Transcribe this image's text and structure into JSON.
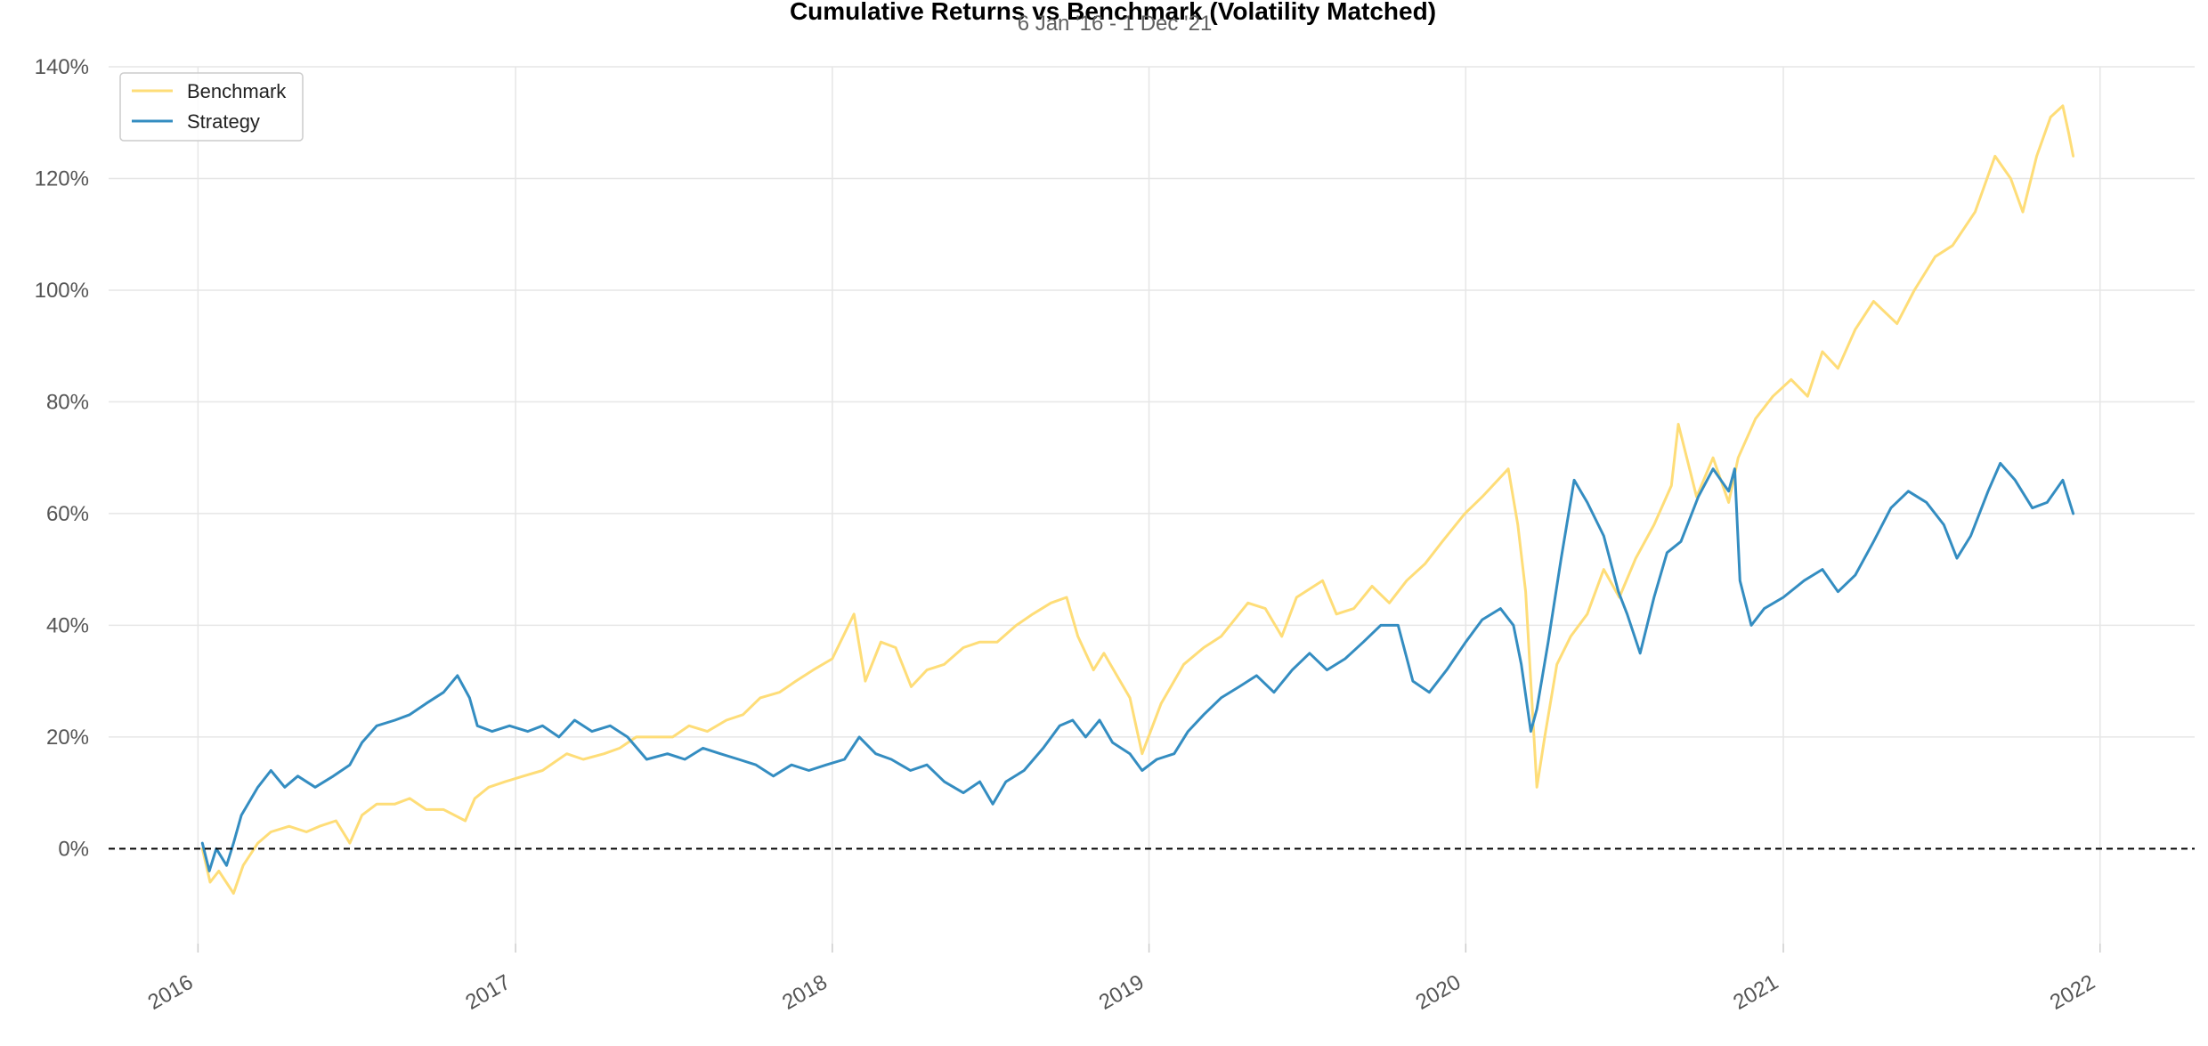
{
  "chart_data": {
    "type": "line",
    "title": "Cumulative Returns vs Benchmark (Volatility Matched)",
    "subtitle": "6 Jan '16 -  1 Dec '21",
    "xlabel": "",
    "ylabel": "",
    "xlim": [
      "2015-09-20",
      "2022-04-20"
    ],
    "ylim": [
      -17,
      140
    ],
    "yticks": [
      0,
      20,
      40,
      60,
      80,
      100,
      120,
      140
    ],
    "ytick_labels": [
      "0%",
      "20%",
      "40%",
      "60%",
      "80%",
      "100%",
      "120%",
      "140%"
    ],
    "xticks": [
      "2016-01-01",
      "2017-01-01",
      "2018-01-01",
      "2019-01-01",
      "2020-01-01",
      "2021-01-01",
      "2022-01-01"
    ],
    "xtick_labels": [
      "2016",
      "2017",
      "2018",
      "2019",
      "2020",
      "2021",
      "2022"
    ],
    "grid": true,
    "legend_position": "top-left",
    "zero_line": true,
    "series": [
      {
        "name": "Benchmark",
        "color": "#fedd78",
        "points": [
          [
            "2016-01-06",
            0
          ],
          [
            "2016-01-15",
            -6
          ],
          [
            "2016-01-25",
            -4
          ],
          [
            "2016-02-11",
            -8
          ],
          [
            "2016-02-22",
            -3
          ],
          [
            "2016-03-10",
            1
          ],
          [
            "2016-03-25",
            3
          ],
          [
            "2016-04-15",
            4
          ],
          [
            "2016-05-05",
            3
          ],
          [
            "2016-05-20",
            4
          ],
          [
            "2016-06-08",
            5
          ],
          [
            "2016-06-24",
            1
          ],
          [
            "2016-07-08",
            6
          ],
          [
            "2016-07-25",
            8
          ],
          [
            "2016-08-15",
            8
          ],
          [
            "2016-09-01",
            9
          ],
          [
            "2016-09-20",
            7
          ],
          [
            "2016-10-10",
            7
          ],
          [
            "2016-11-04",
            5
          ],
          [
            "2016-11-15",
            9
          ],
          [
            "2016-12-01",
            11
          ],
          [
            "2016-12-20",
            12
          ],
          [
            "2017-01-10",
            13
          ],
          [
            "2017-02-01",
            14
          ],
          [
            "2017-03-01",
            17
          ],
          [
            "2017-03-20",
            16
          ],
          [
            "2017-04-13",
            17
          ],
          [
            "2017-05-01",
            18
          ],
          [
            "2017-05-20",
            20
          ],
          [
            "2017-06-10",
            20
          ],
          [
            "2017-07-01",
            20
          ],
          [
            "2017-07-20",
            22
          ],
          [
            "2017-08-10",
            21
          ],
          [
            "2017-09-01",
            23
          ],
          [
            "2017-09-20",
            24
          ],
          [
            "2017-10-10",
            27
          ],
          [
            "2017-11-01",
            28
          ],
          [
            "2017-11-20",
            30
          ],
          [
            "2017-12-10",
            32
          ],
          [
            "2018-01-01",
            34
          ],
          [
            "2018-01-26",
            42
          ],
          [
            "2018-02-08",
            30
          ],
          [
            "2018-02-26",
            37
          ],
          [
            "2018-03-15",
            36
          ],
          [
            "2018-04-02",
            29
          ],
          [
            "2018-04-20",
            32
          ],
          [
            "2018-05-10",
            33
          ],
          [
            "2018-06-01",
            36
          ],
          [
            "2018-06-20",
            37
          ],
          [
            "2018-07-10",
            37
          ],
          [
            "2018-08-01",
            40
          ],
          [
            "2018-08-20",
            42
          ],
          [
            "2018-09-10",
            44
          ],
          [
            "2018-09-28",
            45
          ],
          [
            "2018-10-11",
            38
          ],
          [
            "2018-10-29",
            32
          ],
          [
            "2018-11-10",
            35
          ],
          [
            "2018-11-25",
            31
          ],
          [
            "2018-12-10",
            27
          ],
          [
            "2018-12-24",
            17
          ],
          [
            "2019-01-15",
            26
          ],
          [
            "2019-02-10",
            33
          ],
          [
            "2019-03-05",
            36
          ],
          [
            "2019-03-25",
            38
          ],
          [
            "2019-04-25",
            44
          ],
          [
            "2019-05-15",
            43
          ],
          [
            "2019-06-03",
            38
          ],
          [
            "2019-06-20",
            45
          ],
          [
            "2019-07-20",
            48
          ],
          [
            "2019-08-05",
            42
          ],
          [
            "2019-08-25",
            43
          ],
          [
            "2019-09-15",
            47
          ],
          [
            "2019-10-05",
            44
          ],
          [
            "2019-10-25",
            48
          ],
          [
            "2019-11-15",
            51
          ],
          [
            "2019-12-05",
            55
          ],
          [
            "2019-12-31",
            60
          ],
          [
            "2020-01-20",
            63
          ],
          [
            "2020-02-19",
            68
          ],
          [
            "2020-03-01",
            58
          ],
          [
            "2020-03-10",
            46
          ],
          [
            "2020-03-23",
            11
          ],
          [
            "2020-04-01",
            20
          ],
          [
            "2020-04-15",
            33
          ],
          [
            "2020-05-01",
            38
          ],
          [
            "2020-05-20",
            42
          ],
          [
            "2020-06-08",
            50
          ],
          [
            "2020-06-26",
            45
          ],
          [
            "2020-07-15",
            52
          ],
          [
            "2020-08-05",
            58
          ],
          [
            "2020-08-25",
            65
          ],
          [
            "2020-09-02",
            76
          ],
          [
            "2020-09-23",
            63
          ],
          [
            "2020-10-12",
            70
          ],
          [
            "2020-10-30",
            62
          ],
          [
            "2020-11-10",
            70
          ],
          [
            "2020-11-30",
            77
          ],
          [
            "2020-12-20",
            81
          ],
          [
            "2021-01-10",
            84
          ],
          [
            "2021-01-29",
            81
          ],
          [
            "2021-02-15",
            89
          ],
          [
            "2021-03-05",
            86
          ],
          [
            "2021-03-25",
            93
          ],
          [
            "2021-04-15",
            98
          ],
          [
            "2021-05-12",
            94
          ],
          [
            "2021-06-01",
            100
          ],
          [
            "2021-06-25",
            106
          ],
          [
            "2021-07-15",
            108
          ],
          [
            "2021-08-10",
            114
          ],
          [
            "2021-09-02",
            124
          ],
          [
            "2021-09-20",
            120
          ],
          [
            "2021-10-04",
            114
          ],
          [
            "2021-10-20",
            124
          ],
          [
            "2021-11-05",
            131
          ],
          [
            "2021-11-19",
            133
          ],
          [
            "2021-11-26",
            128
          ],
          [
            "2021-12-01",
            124
          ]
        ]
      },
      {
        "name": "Strategy",
        "color": "#348dc1",
        "points": [
          [
            "2016-01-06",
            1
          ],
          [
            "2016-01-14",
            -4
          ],
          [
            "2016-01-22",
            0
          ],
          [
            "2016-02-03",
            -3
          ],
          [
            "2016-02-11",
            1
          ],
          [
            "2016-02-20",
            6
          ],
          [
            "2016-03-10",
            11
          ],
          [
            "2016-03-25",
            14
          ],
          [
            "2016-04-10",
            11
          ],
          [
            "2016-04-25",
            13
          ],
          [
            "2016-05-15",
            11
          ],
          [
            "2016-06-05",
            13
          ],
          [
            "2016-06-24",
            15
          ],
          [
            "2016-07-08",
            19
          ],
          [
            "2016-07-25",
            22
          ],
          [
            "2016-08-15",
            23
          ],
          [
            "2016-09-01",
            24
          ],
          [
            "2016-09-20",
            26
          ],
          [
            "2016-10-10",
            28
          ],
          [
            "2016-10-26",
            31
          ],
          [
            "2016-11-09",
            27
          ],
          [
            "2016-11-18",
            22
          ],
          [
            "2016-12-05",
            21
          ],
          [
            "2016-12-25",
            22
          ],
          [
            "2017-01-15",
            21
          ],
          [
            "2017-02-01",
            22
          ],
          [
            "2017-02-20",
            20
          ],
          [
            "2017-03-10",
            23
          ],
          [
            "2017-03-30",
            21
          ],
          [
            "2017-04-20",
            22
          ],
          [
            "2017-05-10",
            20
          ],
          [
            "2017-06-01",
            16
          ],
          [
            "2017-06-25",
            17
          ],
          [
            "2017-07-15",
            16
          ],
          [
            "2017-08-05",
            18
          ],
          [
            "2017-08-25",
            17
          ],
          [
            "2017-09-15",
            16
          ],
          [
            "2017-10-05",
            15
          ],
          [
            "2017-10-25",
            13
          ],
          [
            "2017-11-15",
            15
          ],
          [
            "2017-12-05",
            14
          ],
          [
            "2017-12-25",
            15
          ],
          [
            "2018-01-15",
            16
          ],
          [
            "2018-02-01",
            20
          ],
          [
            "2018-02-20",
            17
          ],
          [
            "2018-03-10",
            16
          ],
          [
            "2018-04-01",
            14
          ],
          [
            "2018-04-20",
            15
          ],
          [
            "2018-05-10",
            12
          ],
          [
            "2018-06-01",
            10
          ],
          [
            "2018-06-20",
            12
          ],
          [
            "2018-07-05",
            8
          ],
          [
            "2018-07-20",
            12
          ],
          [
            "2018-08-10",
            14
          ],
          [
            "2018-09-01",
            18
          ],
          [
            "2018-09-20",
            22
          ],
          [
            "2018-10-05",
            23
          ],
          [
            "2018-10-20",
            20
          ],
          [
            "2018-11-05",
            23
          ],
          [
            "2018-11-20",
            19
          ],
          [
            "2018-12-10",
            17
          ],
          [
            "2018-12-24",
            14
          ],
          [
            "2019-01-10",
            16
          ],
          [
            "2019-01-30",
            17
          ],
          [
            "2019-02-15",
            21
          ],
          [
            "2019-03-05",
            24
          ],
          [
            "2019-03-25",
            27
          ],
          [
            "2019-04-15",
            29
          ],
          [
            "2019-05-05",
            31
          ],
          [
            "2019-05-25",
            28
          ],
          [
            "2019-06-15",
            32
          ],
          [
            "2019-07-05",
            35
          ],
          [
            "2019-07-25",
            32
          ],
          [
            "2019-08-15",
            34
          ],
          [
            "2019-09-05",
            37
          ],
          [
            "2019-09-25",
            40
          ],
          [
            "2019-10-15",
            40
          ],
          [
            "2019-11-01",
            30
          ],
          [
            "2019-11-20",
            28
          ],
          [
            "2019-12-10",
            32
          ],
          [
            "2020-01-01",
            37
          ],
          [
            "2020-01-20",
            41
          ],
          [
            "2020-02-10",
            43
          ],
          [
            "2020-02-25",
            40
          ],
          [
            "2020-03-05",
            33
          ],
          [
            "2020-03-16",
            21
          ],
          [
            "2020-03-23",
            25
          ],
          [
            "2020-04-05",
            37
          ],
          [
            "2020-04-20",
            52
          ],
          [
            "2020-05-05",
            66
          ],
          [
            "2020-05-20",
            62
          ],
          [
            "2020-06-08",
            56
          ],
          [
            "2020-06-25",
            46
          ],
          [
            "2020-07-05",
            42
          ],
          [
            "2020-07-20",
            35
          ],
          [
            "2020-08-05",
            45
          ],
          [
            "2020-08-20",
            53
          ],
          [
            "2020-09-05",
            55
          ],
          [
            "2020-09-25",
            63
          ],
          [
            "2020-10-12",
            68
          ],
          [
            "2020-10-30",
            64
          ],
          [
            "2020-11-06",
            68
          ],
          [
            "2020-11-12",
            48
          ],
          [
            "2020-11-25",
            40
          ],
          [
            "2020-12-10",
            43
          ],
          [
            "2021-01-01",
            45
          ],
          [
            "2021-01-25",
            48
          ],
          [
            "2021-02-15",
            50
          ],
          [
            "2021-03-05",
            46
          ],
          [
            "2021-03-25",
            49
          ],
          [
            "2021-04-15",
            55
          ],
          [
            "2021-05-05",
            61
          ],
          [
            "2021-05-25",
            64
          ],
          [
            "2021-06-15",
            62
          ],
          [
            "2021-07-05",
            58
          ],
          [
            "2021-07-20",
            52
          ],
          [
            "2021-08-05",
            56
          ],
          [
            "2021-08-25",
            64
          ],
          [
            "2021-09-08",
            69
          ],
          [
            "2021-09-25",
            66
          ],
          [
            "2021-10-15",
            61
          ],
          [
            "2021-11-01",
            62
          ],
          [
            "2021-11-19",
            66
          ],
          [
            "2021-12-01",
            60
          ]
        ]
      }
    ]
  }
}
